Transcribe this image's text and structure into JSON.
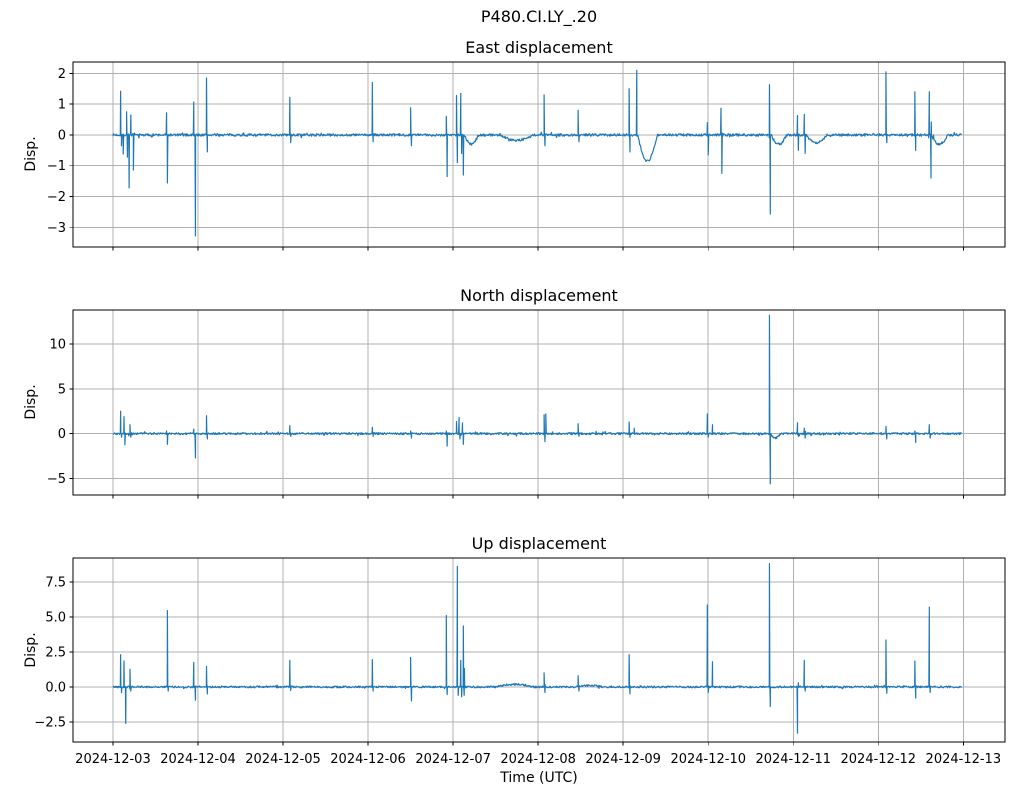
{
  "figure": {
    "suptitle": "P480.CI.LY_.20",
    "xlabel": "Time (UTC)",
    "colors": {
      "line": "#1f77b4",
      "grid": "#b0b0b0",
      "axis": "#000000",
      "text": "#000000",
      "background": "#ffffff"
    }
  },
  "chart_data": {
    "type": "line",
    "title": "P480.CI.LY_.20",
    "xlabel": "Time (UTC)",
    "legend": "none",
    "grid": "on",
    "x_tick_labels": [
      "2024-12-03",
      "2024-12-04",
      "2024-12-05",
      "2024-12-06",
      "2024-12-07",
      "2024-12-08",
      "2024-12-09",
      "2024-12-10",
      "2024-12-11",
      "2024-12-12",
      "2024-12-13"
    ],
    "x_tick_days": [
      0,
      1,
      2,
      3,
      4,
      5,
      6,
      7,
      8,
      9,
      10
    ],
    "x_range_days": [
      -0.47,
      10.49
    ],
    "data_t_range": [
      0.0,
      9.98
    ],
    "subplots": [
      {
        "title": "East displacement",
        "ylabel": "Disp.",
        "ylim": [
          -3.64,
          2.37
        ],
        "ytick_values": [
          2,
          1,
          0,
          -1,
          -2,
          -3
        ],
        "ytick_labels": [
          "2",
          "1",
          "0",
          "−1",
          "−2",
          "−3"
        ],
        "baseline": 0.0,
        "noise_amp": 0.04,
        "seed": 7,
        "spikes": [
          [
            0.09,
            1.42
          ],
          [
            0.1,
            -0.35
          ],
          [
            0.12,
            -0.62
          ],
          [
            0.16,
            0.75
          ],
          [
            0.17,
            -0.72
          ],
          [
            0.19,
            -1.72
          ],
          [
            0.21,
            0.65
          ],
          [
            0.24,
            -1.14
          ],
          [
            0.63,
            0.72
          ],
          [
            0.64,
            -1.56
          ],
          [
            0.95,
            1.07
          ],
          [
            0.97,
            -3.28
          ],
          [
            1.1,
            1.85
          ],
          [
            1.11,
            -0.55
          ],
          [
            2.08,
            1.22
          ],
          [
            2.09,
            -0.25
          ],
          [
            3.05,
            1.7
          ],
          [
            3.06,
            -0.22
          ],
          [
            3.5,
            0.88
          ],
          [
            3.51,
            -0.35
          ],
          [
            3.92,
            0.6
          ],
          [
            3.93,
            -1.35
          ],
          [
            4.04,
            1.28
          ],
          [
            4.05,
            -0.9
          ],
          [
            4.09,
            1.35
          ],
          [
            4.1,
            -0.6
          ],
          [
            4.12,
            -1.3
          ],
          [
            5.07,
            1.3
          ],
          [
            5.08,
            -0.35
          ],
          [
            5.47,
            0.8
          ],
          [
            5.48,
            -0.22
          ],
          [
            6.07,
            1.5
          ],
          [
            6.08,
            -0.55
          ],
          [
            6.16,
            2.1
          ],
          [
            6.99,
            0.4
          ],
          [
            7.0,
            -0.65
          ],
          [
            7.15,
            0.87
          ],
          [
            7.16,
            -1.25
          ],
          [
            7.72,
            1.63
          ],
          [
            7.73,
            -2.57
          ],
          [
            8.05,
            0.63
          ],
          [
            8.06,
            -0.5
          ],
          [
            8.13,
            0.67
          ],
          [
            8.14,
            -0.6
          ],
          [
            9.09,
            2.05
          ],
          [
            9.1,
            -0.25
          ],
          [
            9.43,
            1.4
          ],
          [
            9.44,
            -0.5
          ],
          [
            9.6,
            1.4,
            0.05
          ],
          [
            9.62,
            -1.4
          ]
        ],
        "wiggles": [
          [
            4.55,
            4.95,
            -0.17
          ],
          [
            4.13,
            4.3,
            -0.3
          ],
          [
            6.17,
            6.4,
            -0.85
          ],
          [
            7.74,
            7.92,
            -0.3
          ],
          [
            8.15,
            8.4,
            -0.25
          ],
          [
            9.62,
            9.82,
            -0.3
          ]
        ]
      },
      {
        "title": "North displacement",
        "ylabel": "Disp.",
        "ylim": [
          -6.85,
          13.8
        ],
        "ytick_values": [
          10,
          5,
          0,
          -5
        ],
        "ytick_labels": [
          "10",
          "5",
          "0",
          "−5"
        ],
        "baseline": 0.0,
        "noise_amp": 0.11,
        "seed": 21,
        "spikes": [
          [
            0.09,
            2.5
          ],
          [
            0.1,
            -0.4
          ],
          [
            0.13,
            1.9
          ],
          [
            0.14,
            -1.25
          ],
          [
            0.2,
            1.0
          ],
          [
            0.21,
            -0.4
          ],
          [
            0.63,
            0.3
          ],
          [
            0.64,
            -1.2
          ],
          [
            0.95,
            0.5
          ],
          [
            0.97,
            -2.7
          ],
          [
            1.1,
            2.0
          ],
          [
            1.11,
            -0.6
          ],
          [
            2.08,
            0.9
          ],
          [
            2.09,
            -0.3
          ],
          [
            3.05,
            0.7
          ],
          [
            3.06,
            -0.3
          ],
          [
            3.5,
            0.3
          ],
          [
            3.51,
            -0.5
          ],
          [
            3.92,
            0.3
          ],
          [
            3.93,
            -1.4
          ],
          [
            4.04,
            1.35
          ],
          [
            4.07,
            1.8
          ],
          [
            4.08,
            -0.6
          ],
          [
            4.11,
            1.2
          ],
          [
            4.12,
            -1.2
          ],
          [
            5.07,
            2.1
          ],
          [
            5.08,
            -0.9
          ],
          [
            5.09,
            2.2
          ],
          [
            5.47,
            1.1
          ],
          [
            5.48,
            -0.3
          ],
          [
            6.07,
            1.3
          ],
          [
            6.08,
            -0.4
          ],
          [
            6.13,
            0.6
          ],
          [
            6.99,
            2.2
          ],
          [
            7.0,
            -0.4
          ],
          [
            7.05,
            1.0
          ],
          [
            7.72,
            13.2
          ],
          [
            7.73,
            -5.6
          ],
          [
            8.05,
            1.2
          ],
          [
            8.06,
            -0.3
          ],
          [
            8.13,
            0.6
          ],
          [
            8.14,
            -0.5
          ],
          [
            9.09,
            0.8
          ],
          [
            9.1,
            -0.6
          ],
          [
            9.43,
            0.3
          ],
          [
            9.44,
            -1.0
          ],
          [
            9.6,
            1.0
          ],
          [
            9.61,
            -0.5
          ]
        ],
        "wiggles": [
          [
            7.73,
            7.85,
            -0.5
          ]
        ]
      },
      {
        "title": "Up displacement",
        "ylabel": "Disp.",
        "ylim": [
          -3.93,
          9.2
        ],
        "ytick_values": [
          7.5,
          5.0,
          2.5,
          0.0,
          -2.5
        ],
        "ytick_labels": [
          "7.5",
          "5.0",
          "2.5",
          "0.0",
          "−2.5"
        ],
        "baseline": 0.0,
        "noise_amp": 0.065,
        "seed": 42,
        "spikes": [
          [
            0.09,
            2.3
          ],
          [
            0.1,
            -0.4
          ],
          [
            0.13,
            1.85
          ],
          [
            0.15,
            -2.6
          ],
          [
            0.2,
            1.25
          ],
          [
            0.21,
            -0.3
          ],
          [
            0.64,
            5.45
          ],
          [
            0.65,
            -0.3
          ],
          [
            0.95,
            1.75
          ],
          [
            0.97,
            -0.95
          ],
          [
            1.1,
            1.45
          ],
          [
            1.11,
            -0.5
          ],
          [
            2.08,
            1.9
          ],
          [
            2.09,
            -0.25
          ],
          [
            3.05,
            1.95
          ],
          [
            3.06,
            -0.3
          ],
          [
            3.5,
            2.1
          ],
          [
            3.51,
            -1.0
          ],
          [
            3.92,
            5.1
          ],
          [
            3.93,
            -0.55
          ],
          [
            4.05,
            8.6
          ],
          [
            4.06,
            -0.6
          ],
          [
            4.09,
            1.9
          ],
          [
            4.1,
            -0.7
          ],
          [
            4.12,
            4.35,
            0.03
          ],
          [
            4.13,
            -0.6
          ],
          [
            5.07,
            1.0
          ],
          [
            5.08,
            -0.4
          ],
          [
            5.47,
            0.8
          ],
          [
            5.48,
            -0.3
          ],
          [
            6.07,
            2.3
          ],
          [
            6.08,
            -0.5
          ],
          [
            6.99,
            5.85
          ],
          [
            7.0,
            -0.4
          ],
          [
            7.05,
            1.8
          ],
          [
            7.72,
            8.8
          ],
          [
            7.73,
            -1.4
          ],
          [
            8.05,
            -3.3
          ],
          [
            8.06,
            0.3
          ],
          [
            8.13,
            1.9
          ],
          [
            8.14,
            -0.3
          ],
          [
            9.09,
            3.35
          ],
          [
            9.1,
            -0.45
          ],
          [
            9.43,
            1.85
          ],
          [
            9.44,
            -0.8
          ],
          [
            9.6,
            5.7
          ],
          [
            9.61,
            -0.4
          ]
        ],
        "wiggles": [
          [
            4.5,
            4.95,
            0.18
          ],
          [
            5.45,
            5.75,
            0.1
          ]
        ]
      }
    ]
  }
}
